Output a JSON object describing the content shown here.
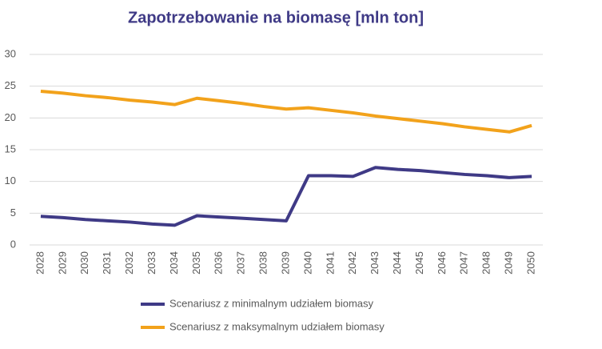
{
  "chart_data": {
    "type": "line",
    "title": "Zapotrzebowanie na biomasę [mln ton]",
    "categories": [
      "2028",
      "2029",
      "2030",
      "2031",
      "2032",
      "2033",
      "2034",
      "2035",
      "2036",
      "2037",
      "2038",
      "2039",
      "2040",
      "2041",
      "2042",
      "2043",
      "2044",
      "2045",
      "2046",
      "2047",
      "2048",
      "2049",
      "2050"
    ],
    "series": [
      {
        "name": "Scenariusz z minimalnym udziałem biomasy",
        "color": "#3f3a86",
        "values": [
          4.5,
          4.3,
          4.0,
          3.8,
          3.6,
          3.3,
          3.1,
          4.6,
          4.4,
          4.2,
          4.0,
          3.8,
          10.9,
          10.9,
          10.8,
          12.2,
          11.9,
          11.7,
          11.4,
          11.1,
          10.9,
          10.6,
          10.8
        ]
      },
      {
        "name": "Scenariusz z maksymalnym udziałem biomasy",
        "color": "#f2a21b",
        "values": [
          24.2,
          23.9,
          23.5,
          23.2,
          22.8,
          22.5,
          22.1,
          23.1,
          22.7,
          22.3,
          21.8,
          21.4,
          21.6,
          21.2,
          20.8,
          20.3,
          19.9,
          19.5,
          19.1,
          18.6,
          18.2,
          17.8,
          18.8
        ]
      }
    ],
    "ylim": [
      0,
      30
    ],
    "yticks": [
      0,
      5,
      10,
      15,
      20,
      25,
      30
    ],
    "grid": true,
    "legend": "bottom"
  }
}
